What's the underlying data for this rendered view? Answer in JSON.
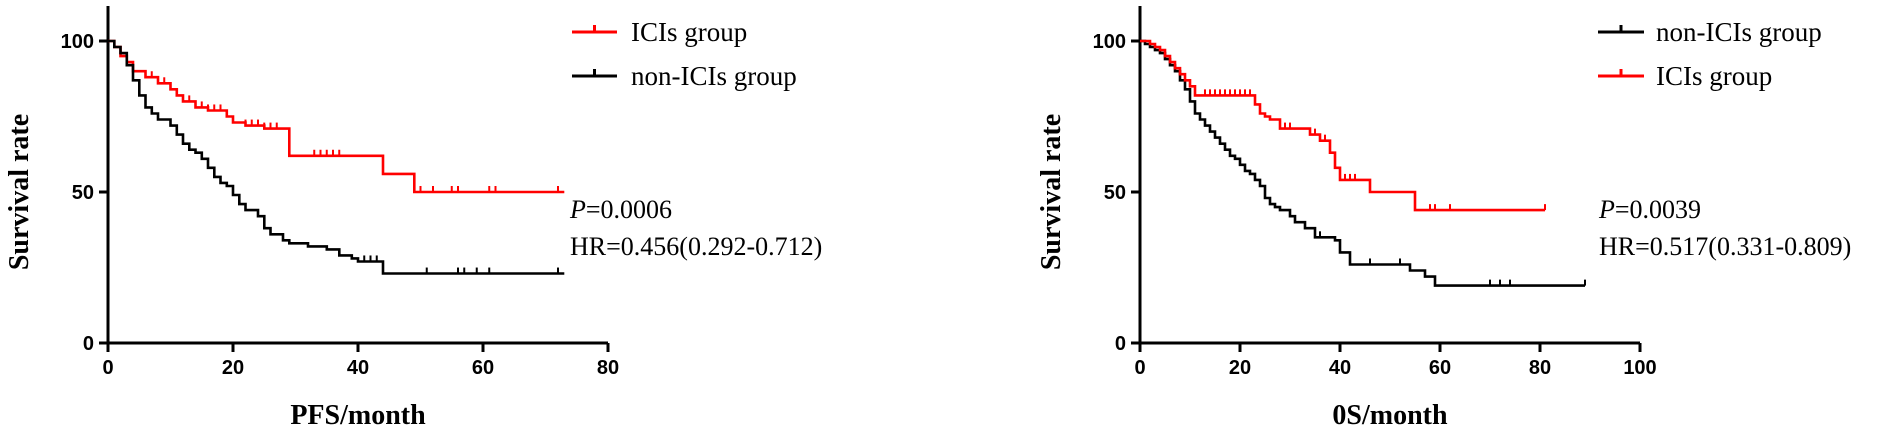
{
  "chart_data": [
    {
      "type": "line",
      "xlabel": "PFS/month",
      "ylabel": "Survival rate",
      "xlim": [
        0,
        80
      ],
      "ylim": [
        0,
        100
      ],
      "xticks": [
        "0",
        "20",
        "40",
        "60",
        "80"
      ],
      "yticks": [
        "0",
        "50",
        "100"
      ],
      "grid": false,
      "legend_position": "top-right",
      "stat_p_prefix": "P",
      "stat_p_value": "=0.0006",
      "stat_hr": "HR=0.456(0.292-0.712)",
      "series": [
        {
          "name": "ICIs group",
          "color": "#ff0000",
          "points": [
            [
              0,
              100
            ],
            [
              1,
              98
            ],
            [
              2,
              95
            ],
            [
              3,
              93
            ],
            [
              4,
              90
            ],
            [
              6,
              88
            ],
            [
              8,
              86
            ],
            [
              10,
              84
            ],
            [
              11,
              82
            ],
            [
              12,
              80
            ],
            [
              14,
              78
            ],
            [
              16,
              77
            ],
            [
              19,
              75
            ],
            [
              20,
              73
            ],
            [
              22,
              72
            ],
            [
              25,
              71
            ],
            [
              29,
              62
            ],
            [
              34,
              62
            ],
            [
              40,
              62
            ],
            [
              44,
              56
            ],
            [
              49,
              50
            ],
            [
              60,
              50
            ],
            [
              73,
              50
            ]
          ],
          "censor_x": [
            6,
            7,
            9,
            13,
            14,
            15,
            16,
            17,
            18,
            19,
            22,
            23,
            24,
            25,
            26,
            27,
            33,
            34,
            35,
            36,
            37,
            50,
            52,
            55,
            56,
            61,
            62,
            72
          ]
        },
        {
          "name": "non-ICIs group",
          "color": "#000000",
          "points": [
            [
              0,
              100
            ],
            [
              1,
              98
            ],
            [
              2,
              96
            ],
            [
              3,
              92
            ],
            [
              4,
              87
            ],
            [
              5,
              82
            ],
            [
              6,
              78
            ],
            [
              7,
              76
            ],
            [
              8,
              74
            ],
            [
              10,
              72
            ],
            [
              11,
              69
            ],
            [
              12,
              66
            ],
            [
              13,
              64
            ],
            [
              14,
              63
            ],
            [
              15,
              61
            ],
            [
              16,
              58
            ],
            [
              17,
              55
            ],
            [
              18,
              53
            ],
            [
              19,
              52
            ],
            [
              20,
              49
            ],
            [
              21,
              46
            ],
            [
              22,
              44
            ],
            [
              24,
              42
            ],
            [
              25,
              38
            ],
            [
              26,
              36
            ],
            [
              28,
              34
            ],
            [
              29,
              33
            ],
            [
              32,
              32
            ],
            [
              35,
              31
            ],
            [
              37,
              29
            ],
            [
              39,
              28
            ],
            [
              40,
              27
            ],
            [
              44,
              23
            ],
            [
              50,
              23
            ],
            [
              60,
              23
            ],
            [
              73,
              23
            ]
          ],
          "censor_x": [
            41,
            42,
            43,
            51,
            56,
            57,
            59,
            61,
            72
          ]
        }
      ]
    },
    {
      "type": "line",
      "xlabel": "0S/month",
      "ylabel": "Survival rate",
      "xlim": [
        0,
        100
      ],
      "ylim": [
        0,
        100
      ],
      "xticks": [
        "0",
        "20",
        "40",
        "60",
        "80",
        "100"
      ],
      "yticks": [
        "0",
        "50",
        "100"
      ],
      "grid": false,
      "legend_position": "top-right",
      "stat_p_prefix": "P",
      "stat_p_value": "=0.0039",
      "stat_hr": "HR=0.517(0.331-0.809)",
      "series": [
        {
          "name": "non-ICIs group",
          "color": "#000000",
          "points": [
            [
              0,
              100
            ],
            [
              1,
              99
            ],
            [
              2,
              98
            ],
            [
              3,
              97
            ],
            [
              4,
              96
            ],
            [
              5,
              94
            ],
            [
              6,
              92
            ],
            [
              7,
              90
            ],
            [
              8,
              87
            ],
            [
              9,
              84
            ],
            [
              10,
              80
            ],
            [
              11,
              76
            ],
            [
              12,
              74
            ],
            [
              13,
              72
            ],
            [
              14,
              70
            ],
            [
              15,
              68
            ],
            [
              16,
              66
            ],
            [
              17,
              64
            ],
            [
              18,
              62
            ],
            [
              19,
              61
            ],
            [
              20,
              59
            ],
            [
              21,
              57
            ],
            [
              22,
              56
            ],
            [
              23,
              54
            ],
            [
              24,
              52
            ],
            [
              25,
              48
            ],
            [
              26,
              46
            ],
            [
              27,
              45
            ],
            [
              28,
              44
            ],
            [
              30,
              42
            ],
            [
              31,
              40
            ],
            [
              33,
              38
            ],
            [
              35,
              35
            ],
            [
              38,
              35
            ],
            [
              39,
              34
            ],
            [
              40,
              30
            ],
            [
              42,
              26
            ],
            [
              45,
              26
            ],
            [
              50,
              26
            ],
            [
              54,
              24
            ],
            [
              57,
              22
            ],
            [
              58,
              22
            ],
            [
              59,
              19
            ],
            [
              70,
              19
            ],
            [
              89,
              19
            ]
          ],
          "censor_x": [
            15,
            16,
            23,
            35,
            36,
            46,
            52,
            70,
            72,
            74,
            89
          ]
        },
        {
          "name": "ICIs group",
          "color": "#ff0000",
          "points": [
            [
              0,
              100
            ],
            [
              1,
              100
            ],
            [
              2,
              99
            ],
            [
              3,
              98
            ],
            [
              4,
              97
            ],
            [
              5,
              95
            ],
            [
              6,
              93
            ],
            [
              7,
              91
            ],
            [
              8,
              89
            ],
            [
              9,
              87
            ],
            [
              10,
              85
            ],
            [
              11,
              82
            ],
            [
              12,
              82
            ],
            [
              16,
              82
            ],
            [
              22,
              82
            ],
            [
              23,
              79
            ],
            [
              24,
              76
            ],
            [
              25,
              75
            ],
            [
              26,
              74
            ],
            [
              28,
              71
            ],
            [
              33,
              71
            ],
            [
              34,
              69
            ],
            [
              36,
              67
            ],
            [
              38,
              63
            ],
            [
              39,
              58
            ],
            [
              40,
              54
            ],
            [
              44,
              54
            ],
            [
              46,
              50
            ],
            [
              54,
              50
            ],
            [
              55,
              44
            ],
            [
              60,
              44
            ],
            [
              81,
              44
            ]
          ],
          "censor_x": [
            13,
            14,
            15,
            16,
            17,
            18,
            19,
            20,
            21,
            22,
            29,
            30,
            34,
            35,
            37,
            39,
            41,
            42,
            43,
            55,
            58,
            59,
            62,
            81
          ]
        }
      ]
    }
  ]
}
